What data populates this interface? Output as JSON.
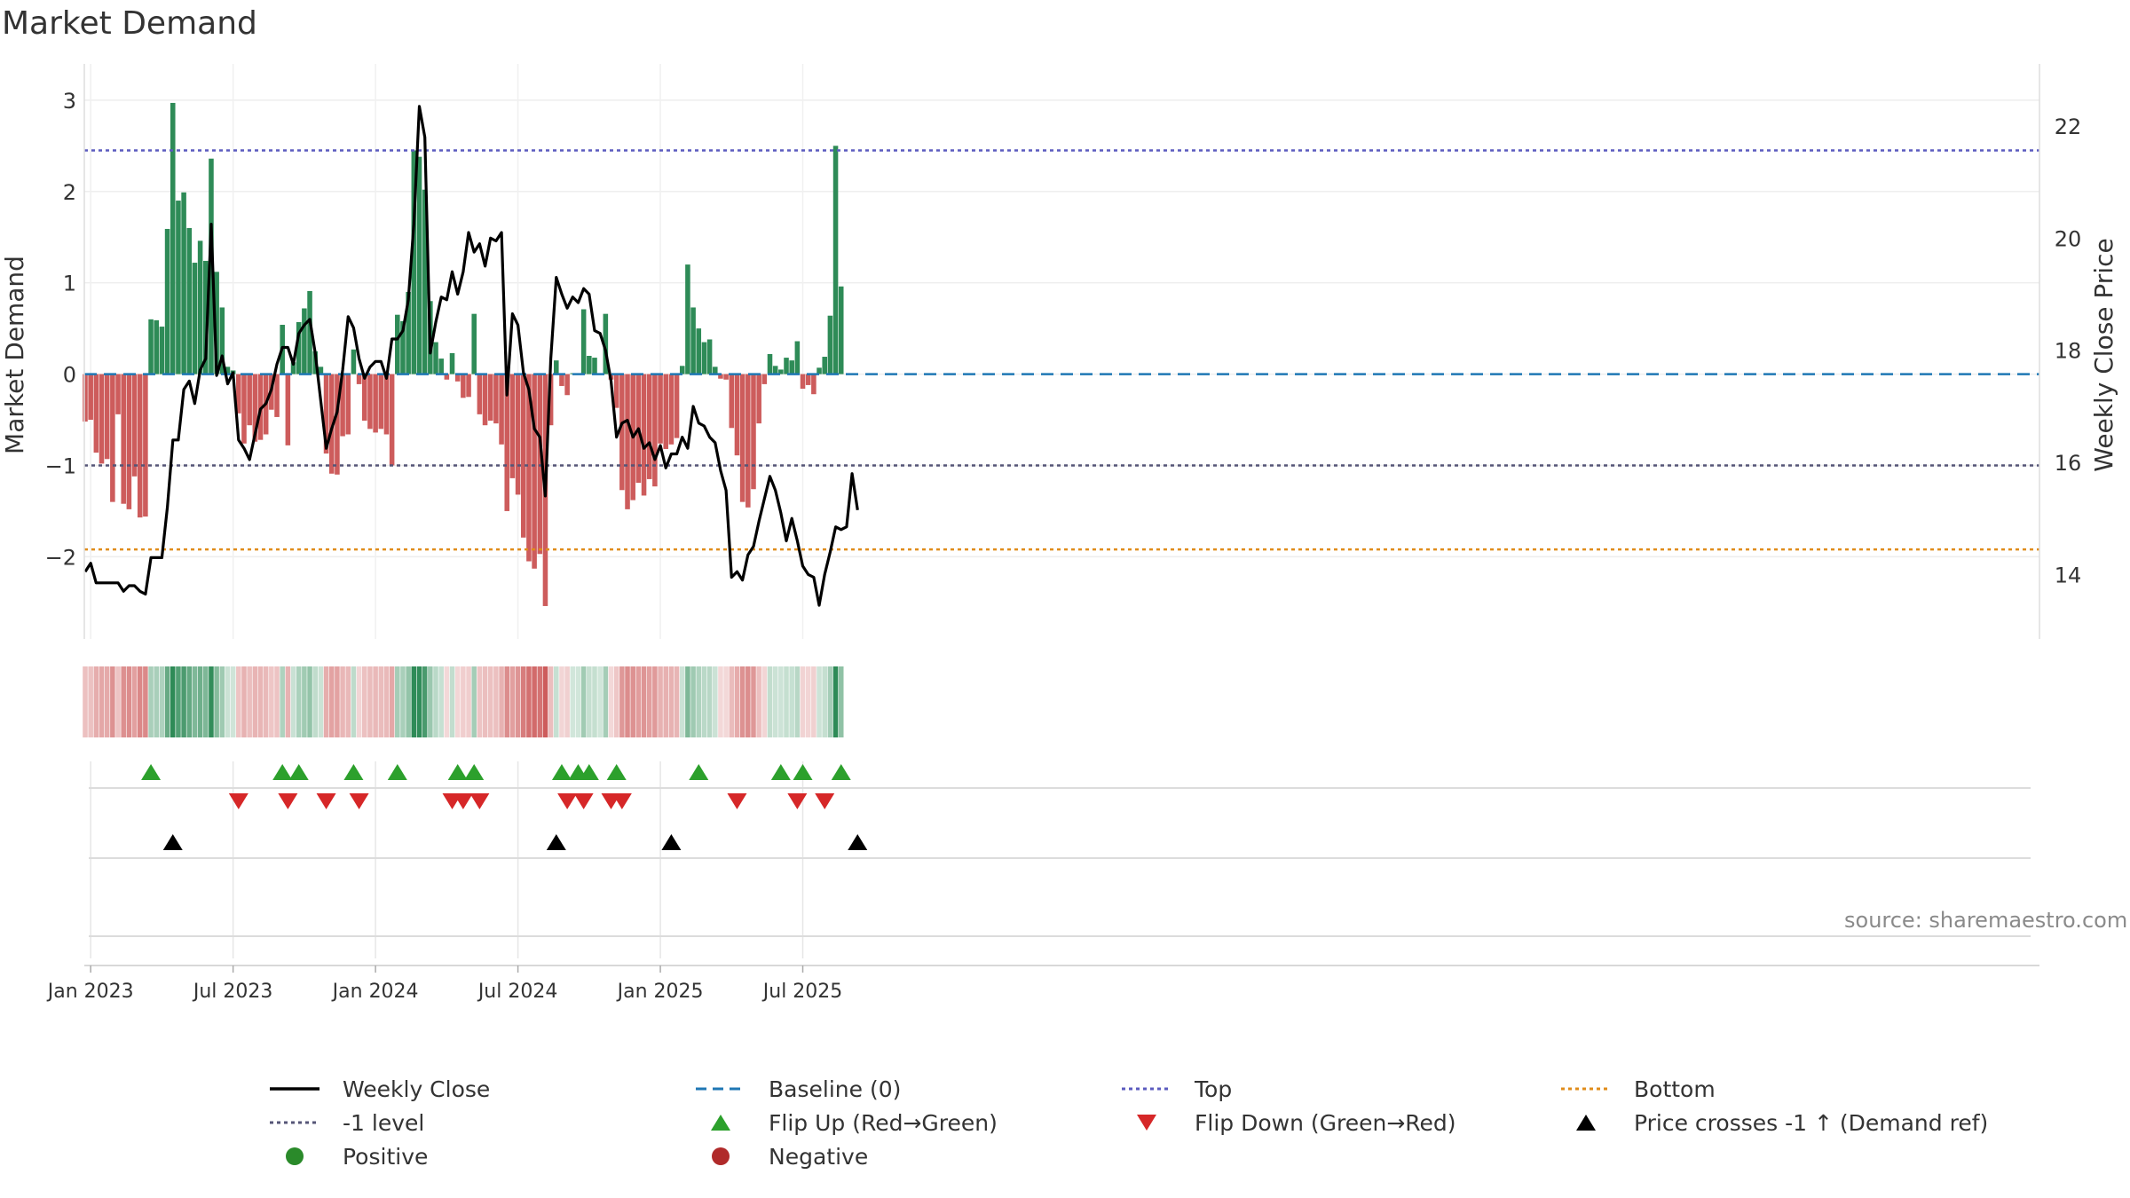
{
  "title": "Market Demand",
  "source": "source: sharemaestro.com",
  "colors": {
    "positive": "#2e8b57",
    "negative": "#cd5c5c",
    "price_line": "#000000",
    "baseline": "#1f77b4",
    "top": "#5b5bbf",
    "neg1": "#555577",
    "bottom": "#e08c1a",
    "flip_up": "#2ca02c",
    "flip_down": "#d62728",
    "cross": "#000000",
    "positive_dot": "#2a8a2a",
    "negative_dot": "#b02a2a"
  },
  "chart_data": {
    "type": "bar+line",
    "title": "Market Demand",
    "ylabel_left": "Market Demand",
    "ylabel_right": "Weekly Close Price",
    "ylim_left": [
      -2.9,
      3.3
    ],
    "ylim_right": [
      12.85,
      22.95
    ],
    "yticks_left": [
      -2,
      -1,
      0,
      1,
      2,
      3
    ],
    "yticks_left_labels": [
      "−2",
      "−1",
      "0",
      "1",
      "2",
      "3"
    ],
    "yticks_right": [
      14,
      16,
      18,
      20,
      22
    ],
    "yticks_right_labels": [
      "14",
      "16",
      "18",
      "20",
      "22"
    ],
    "x_start": "2022-12-26",
    "week_step": 1,
    "xticks": [
      {
        "week": 1,
        "label": "Jan 2023"
      },
      {
        "week": 27,
        "label": "Jul 2023"
      },
      {
        "week": 53,
        "label": "Jan 2024"
      },
      {
        "week": 79,
        "label": "Jul 2024"
      },
      {
        "week": 105,
        "label": "Jan 2025"
      },
      {
        "week": 131,
        "label": "Jul 2025"
      }
    ],
    "reference_lines": {
      "baseline": 0,
      "top": 2.45,
      "neg1": -1,
      "bottom": -1.92
    },
    "demand": [
      -0.52,
      -0.5,
      -0.86,
      -0.98,
      -0.93,
      -1.4,
      -0.44,
      -1.42,
      -1.48,
      -1.12,
      -1.57,
      -1.56,
      0.6,
      0.59,
      0.52,
      1.59,
      2.97,
      1.9,
      1.99,
      1.6,
      1.22,
      1.46,
      1.24,
      2.36,
      1.12,
      0.73,
      0.08,
      0.04,
      -0.43,
      -0.76,
      -0.56,
      -0.74,
      -0.72,
      -0.66,
      -0.39,
      -0.47,
      0.54,
      -0.78,
      0.13,
      0.57,
      0.72,
      0.91,
      0.25,
      0.08,
      -0.87,
      -1.09,
      -1.1,
      -0.68,
      -0.66,
      0.27,
      -0.11,
      -0.51,
      -0.6,
      -0.64,
      -0.6,
      -0.66,
      -1.0,
      0.65,
      0.58,
      0.9,
      2.45,
      2.38,
      2.02,
      0.8,
      0.35,
      0.17,
      -0.06,
      0.23,
      -0.08,
      -0.26,
      -0.25,
      0.66,
      -0.44,
      -0.56,
      -0.51,
      -0.54,
      -0.77,
      -1.5,
      -1.14,
      -1.32,
      -1.79,
      -2.05,
      -2.13,
      -1.97,
      -2.54,
      -0.56,
      0.15,
      -0.13,
      -0.23,
      0.01,
      0.01,
      0.71,
      0.2,
      0.18,
      0.01,
      0.66,
      -0.06,
      -0.37,
      -1.27,
      -1.48,
      -1.38,
      -1.19,
      -1.33,
      -1.15,
      -1.23,
      -0.76,
      -0.82,
      -0.77,
      -0.7,
      0.09,
      1.2,
      0.73,
      0.5,
      0.35,
      0.38,
      0.08,
      -0.05,
      -0.06,
      -0.59,
      -0.89,
      -1.4,
      -1.46,
      -1.26,
      -0.54,
      -0.11,
      0.22,
      0.09,
      0.05,
      0.18,
      0.15,
      0.36,
      -0.16,
      -0.12,
      -0.22,
      0.07,
      0.19,
      0.64,
      2.5,
      0.96
    ],
    "price": [
      14.05,
      14.2,
      13.85,
      13.85,
      13.85,
      13.85,
      13.85,
      13.7,
      13.8,
      13.8,
      13.7,
      13.65,
      14.3,
      14.3,
      14.3,
      15.2,
      16.4,
      16.4,
      17.3,
      17.45,
      17.05,
      17.65,
      17.85,
      20.25,
      17.55,
      17.9,
      17.4,
      17.6,
      16.4,
      16.25,
      16.05,
      16.5,
      16.95,
      17.05,
      17.3,
      17.75,
      18.05,
      18.05,
      17.75,
      18.3,
      18.45,
      18.55,
      17.95,
      17.1,
      16.25,
      16.6,
      16.9,
      17.65,
      18.6,
      18.4,
      17.85,
      17.5,
      17.7,
      17.8,
      17.8,
      17.5,
      18.2,
      18.2,
      18.35,
      18.9,
      20.25,
      22.35,
      21.8,
      17.95,
      18.5,
      18.95,
      18.9,
      19.4,
      19.0,
      19.4,
      20.1,
      19.75,
      19.9,
      19.5,
      20.0,
      19.95,
      20.1,
      17.2,
      18.65,
      18.45,
      17.6,
      17.3,
      16.6,
      16.45,
      15.4,
      17.85,
      19.3,
      19.0,
      18.75,
      18.95,
      18.85,
      19.1,
      19.0,
      18.35,
      18.3,
      18.0,
      17.45,
      16.45,
      16.7,
      16.75,
      16.45,
      16.6,
      16.25,
      16.35,
      16.05,
      16.3,
      15.9,
      16.15,
      16.15,
      16.45,
      16.25,
      17.0,
      16.7,
      16.65,
      16.45,
      16.35,
      15.85,
      15.5,
      13.95,
      14.05,
      13.9,
      14.35,
      14.5,
      14.95,
      15.35,
      15.75,
      15.5,
      15.1,
      14.6,
      15.0,
      14.6,
      14.15,
      14.0,
      13.95,
      13.45,
      14.0,
      14.4,
      14.85,
      14.8,
      14.85,
      15.8,
      15.15
    ],
    "flip_up_weeks": [
      12,
      36,
      39,
      49,
      57,
      68,
      71,
      87,
      90,
      92,
      97,
      112,
      127,
      131,
      138
    ],
    "flip_down_weeks": [
      28,
      37,
      44,
      50,
      67,
      69,
      72,
      88,
      91,
      96,
      98,
      119,
      130,
      135
    ],
    "price_cross_weeks": [
      16,
      86,
      107,
      141
    ],
    "legend": [
      {
        "label": "Weekly Close",
        "kind": "line_solid",
        "color": "#000000"
      },
      {
        "label": "Baseline (0)",
        "kind": "line_dash",
        "color": "#1f77b4"
      },
      {
        "label": "Top",
        "kind": "line_dot",
        "color": "#5b5bbf"
      },
      {
        "label": "Bottom",
        "kind": "line_dot",
        "color": "#e08c1a"
      },
      {
        "label": "-1 level",
        "kind": "line_dot",
        "color": "#555577"
      },
      {
        "label": "Flip Up (Red→Green)",
        "kind": "tri_up",
        "color": "#2ca02c"
      },
      {
        "label": "Flip Down (Green→Red)",
        "kind": "tri_down",
        "color": "#d62728"
      },
      {
        "label": "Price crosses -1 ↑ (Demand ref)",
        "kind": "tri_up",
        "color": "#000000"
      },
      {
        "label": "Positive",
        "kind": "dot",
        "color": "#2a8a2a"
      },
      {
        "label": "Negative",
        "kind": "dot",
        "color": "#b02a2a"
      }
    ]
  }
}
